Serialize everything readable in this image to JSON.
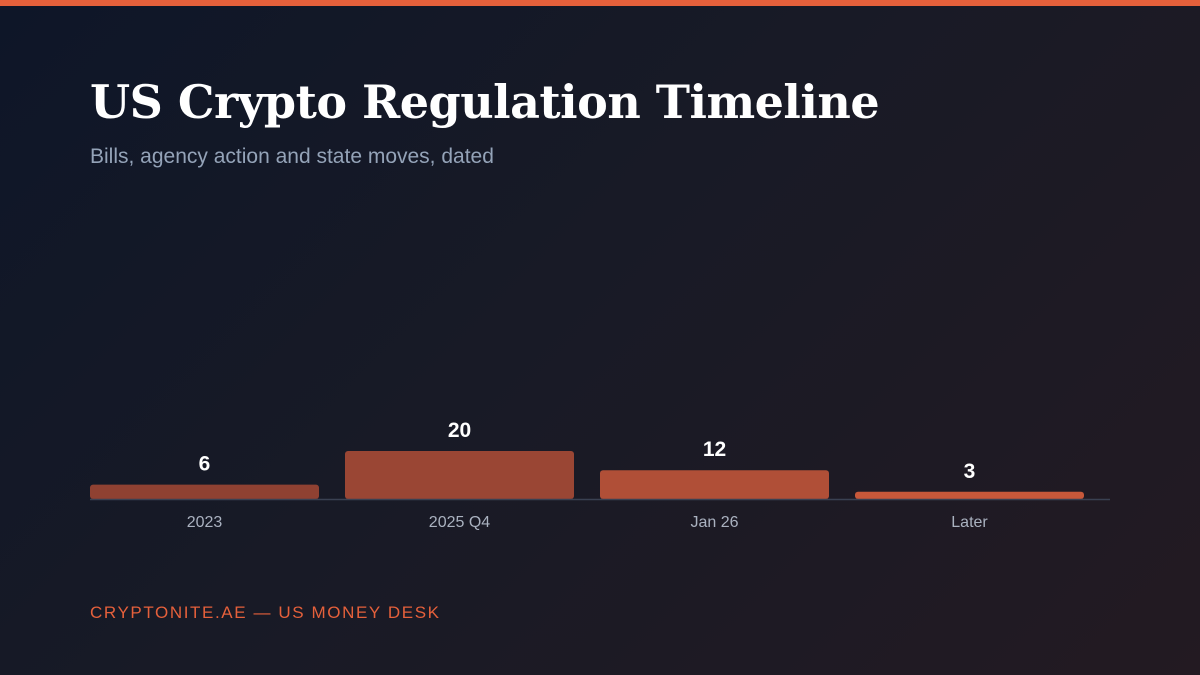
{
  "header": {
    "title": "US Crypto Regulation Timeline",
    "subtitle": "Bills, agency action and state moves, dated"
  },
  "footer": {
    "credit": "CRYPTONITE.AE — US MONEY DESK"
  },
  "colors": {
    "accent": "#e5603b",
    "bar_colors": [
      "#8f4132",
      "#9a4634",
      "#b04f37",
      "#c7583a"
    ],
    "baseline": "#3a4152"
  },
  "chart_data": {
    "type": "bar",
    "categories": [
      "2023",
      "2025 Q4",
      "Jan 26",
      "Later"
    ],
    "values": [
      6,
      20,
      12,
      3
    ],
    "title": "US Crypto Regulation Timeline",
    "subtitle": "Bills, agency action and state moves, dated",
    "xlabel": "",
    "ylabel": "",
    "ylim": [
      0,
      20
    ],
    "grid": false,
    "legend": "none",
    "data_labels": true
  }
}
